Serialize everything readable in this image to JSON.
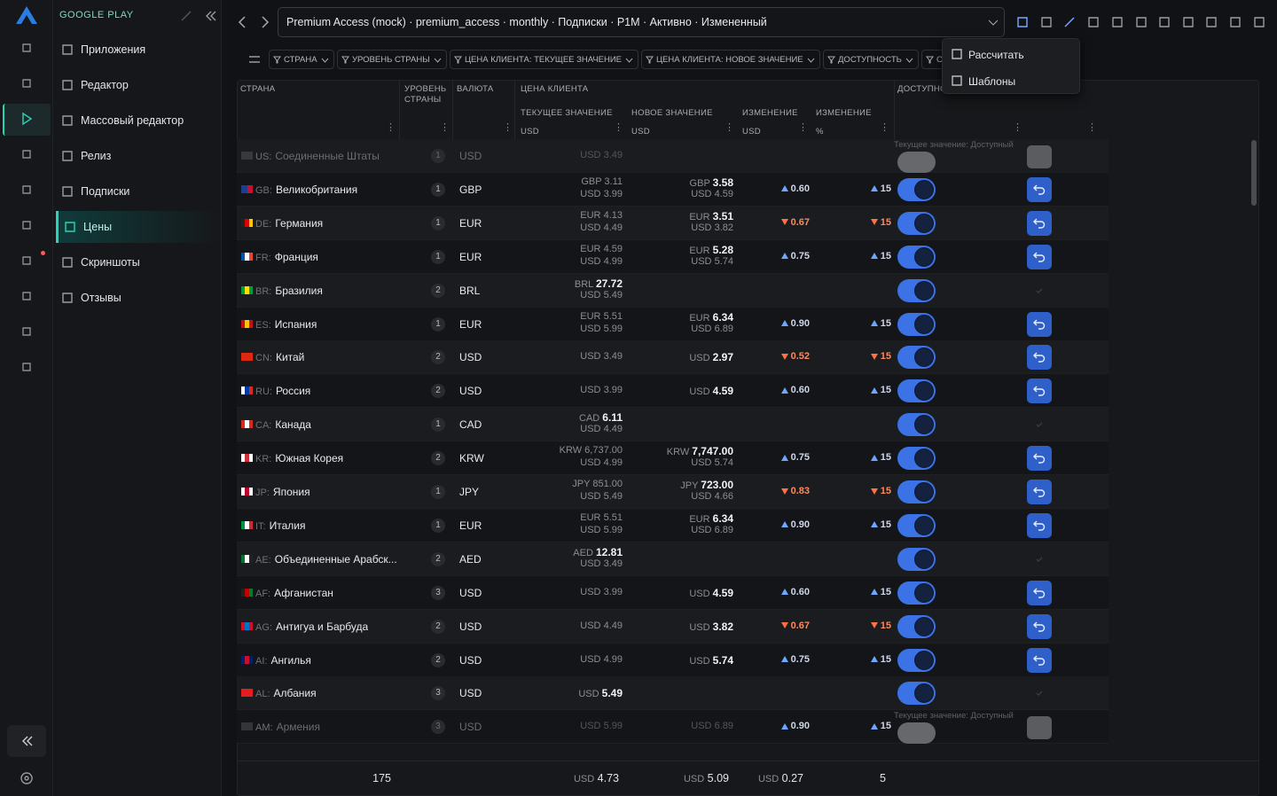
{
  "sidebar": {
    "title": "GOOGLE PLAY",
    "active": 5,
    "items": [
      "Приложения",
      "Редактор",
      "Массовый редактор",
      "Релиз",
      "Подписки",
      "Цены",
      "Скриншоты",
      "Отзывы"
    ]
  },
  "topbar": {
    "breadcrumb": "Premium Access (mock) · premium_access · monthly · Подписки · P1M · Активно · Измененный"
  },
  "filters": [
    "СТРАНА",
    "УРОВЕНЬ СТРАНЫ",
    "ЦЕНА КЛИЕНТА: ТЕКУЩЕЕ ЗНАЧЕНИЕ",
    "ЦЕНА КЛИЕНТА: НОВОЕ ЗНАЧЕНИЕ",
    "ДОСТУПНОСТЬ",
    "СТАТУС"
  ],
  "menu": [
    "Рассчитать",
    "Шаблоны"
  ],
  "table": {
    "headers": {
      "country": "СТРАНА",
      "tier": "УРОВЕНЬ СТРАНЫ",
      "currency": "ВАЛЮТА",
      "price": "ЦЕНА КЛИЕНТА",
      "current": "ТЕКУЩЕЕ ЗНАЧЕНИЕ",
      "new": "НОВОЕ ЗНАЧЕНИЕ",
      "change": "ИЗМЕНЕНИЕ",
      "change_pct": "ИЗМЕНЕНИЕ",
      "availability": "ДОСТУПНОСТЬ",
      "unit_current": "USD",
      "unit_new": "USD",
      "unit_change": "USD",
      "unit_pct": "%"
    },
    "rows": [
      {
        "code": "US:",
        "name": "Соединенные Штаты",
        "flag": [
          "#666",
          "#666"
        ],
        "tier": "1",
        "currency": "USD",
        "current": [
          {
            "cur": "USD",
            "amt": "3.49"
          }
        ],
        "disabled": true,
        "hint": "Текущее значение: Доступный"
      },
      {
        "code": "GB:",
        "name": "Великобритания",
        "flag": [
          "#1f3d8f",
          "#c8102e"
        ],
        "tier": "1",
        "currency": "GBP",
        "current": [
          {
            "cur": "GBP",
            "amt": "3.11"
          },
          {
            "cur": "USD",
            "amt": "3.99"
          }
        ],
        "new": [
          {
            "cur": "GBP",
            "amt": "3.58"
          },
          {
            "cur": "USD",
            "amt": "4.59"
          }
        ],
        "change": {
          "dir": "up",
          "value": "0.60"
        },
        "pct": {
          "dir": "up",
          "value": "15"
        }
      },
      {
        "code": "DE:",
        "name": "Германия",
        "flag": [
          "#222",
          "#dd0000",
          "#ffce00"
        ],
        "tier": "1",
        "currency": "EUR",
        "current": [
          {
            "cur": "EUR",
            "amt": "4.13"
          },
          {
            "cur": "USD",
            "amt": "4.49"
          }
        ],
        "new": [
          {
            "cur": "EUR",
            "amt": "3.51"
          },
          {
            "cur": "USD",
            "amt": "3.82"
          }
        ],
        "change": {
          "dir": "down",
          "value": "0.67"
        },
        "pct": {
          "dir": "down",
          "value": "15"
        }
      },
      {
        "code": "FR:",
        "name": "Франция",
        "flag": [
          "#0055a4",
          "#ffffff",
          "#ef4135"
        ],
        "tier": "1",
        "currency": "EUR",
        "current": [
          {
            "cur": "EUR",
            "amt": "4.59"
          },
          {
            "cur": "USD",
            "amt": "4.99"
          }
        ],
        "new": [
          {
            "cur": "EUR",
            "amt": "5.28"
          },
          {
            "cur": "USD",
            "amt": "5.74"
          }
        ],
        "change": {
          "dir": "up",
          "value": "0.75"
        },
        "pct": {
          "dir": "up",
          "value": "15"
        }
      },
      {
        "code": "BR:",
        "name": "Бразилия",
        "flag": [
          "#009c3b",
          "#ffdf00",
          "#009c3b"
        ],
        "tier": "2",
        "currency": "BRL",
        "current": [
          {
            "cur": "BRL",
            "amt": "27.72"
          },
          {
            "cur": "USD",
            "amt": "5.49"
          }
        ]
      },
      {
        "code": "ES:",
        "name": "Испания",
        "flag": [
          "#c60b1e",
          "#ffc400",
          "#c60b1e"
        ],
        "tier": "1",
        "currency": "EUR",
        "current": [
          {
            "cur": "EUR",
            "amt": "5.51"
          },
          {
            "cur": "USD",
            "amt": "5.99"
          }
        ],
        "new": [
          {
            "cur": "EUR",
            "amt": "6.34"
          },
          {
            "cur": "USD",
            "amt": "6.89"
          }
        ],
        "change": {
          "dir": "up",
          "value": "0.90"
        },
        "pct": {
          "dir": "up",
          "value": "15"
        }
      },
      {
        "code": "CN:",
        "name": "Китай",
        "flag": [
          "#de2910",
          "#de2910"
        ],
        "tier": "2",
        "currency": "USD",
        "current": [
          {
            "cur": "USD",
            "amt": "3.49"
          }
        ],
        "new": [
          {
            "cur": "USD",
            "amt": "2.97"
          }
        ],
        "change": {
          "dir": "down",
          "value": "0.52"
        },
        "pct": {
          "dir": "down",
          "value": "15"
        }
      },
      {
        "code": "RU:",
        "name": "Россия",
        "flag": [
          "#ffffff",
          "#0039a6",
          "#d52b1e"
        ],
        "tier": "2",
        "currency": "USD",
        "current": [
          {
            "cur": "USD",
            "amt": "3.99"
          }
        ],
        "new": [
          {
            "cur": "USD",
            "amt": "4.59"
          }
        ],
        "change": {
          "dir": "up",
          "value": "0.60"
        },
        "pct": {
          "dir": "up",
          "value": "15"
        }
      },
      {
        "code": "CA:",
        "name": "Канада",
        "flag": [
          "#d52b1e",
          "#ffffff",
          "#d52b1e"
        ],
        "tier": "1",
        "currency": "CAD",
        "current": [
          {
            "cur": "CAD",
            "amt": "6.11"
          },
          {
            "cur": "USD",
            "amt": "4.49"
          }
        ]
      },
      {
        "code": "KR:",
        "name": "Южная Корея",
        "flag": [
          "#ffffff",
          "#cd2e3a",
          "#ffffff"
        ],
        "tier": "2",
        "currency": "KRW",
        "current": [
          {
            "cur": "KRW",
            "amt": "6,737.00"
          },
          {
            "cur": "USD",
            "amt": "4.99"
          }
        ],
        "new": [
          {
            "cur": "KRW",
            "amt": "7,747.00"
          },
          {
            "cur": "USD",
            "amt": "5.74"
          }
        ],
        "change": {
          "dir": "up",
          "value": "0.75"
        },
        "pct": {
          "dir": "up",
          "value": "15"
        }
      },
      {
        "code": "JP:",
        "name": "Япония",
        "flag": [
          "#ffffff",
          "#bc002d",
          "#ffffff"
        ],
        "tier": "1",
        "currency": "JPY",
        "current": [
          {
            "cur": "JPY",
            "amt": "851.00"
          },
          {
            "cur": "USD",
            "amt": "5.49"
          }
        ],
        "new": [
          {
            "cur": "JPY",
            "amt": "723.00"
          },
          {
            "cur": "USD",
            "amt": "4.66"
          }
        ],
        "change": {
          "dir": "down",
          "value": "0.83"
        },
        "pct": {
          "dir": "down",
          "value": "15"
        }
      },
      {
        "code": "IT:",
        "name": "Италия",
        "flag": [
          "#009246",
          "#ffffff",
          "#ce2b37"
        ],
        "tier": "1",
        "currency": "EUR",
        "current": [
          {
            "cur": "EUR",
            "amt": "5.51"
          },
          {
            "cur": "USD",
            "amt": "5.99"
          }
        ],
        "new": [
          {
            "cur": "EUR",
            "amt": "6.34"
          },
          {
            "cur": "USD",
            "amt": "6.89"
          }
        ],
        "change": {
          "dir": "up",
          "value": "0.90"
        },
        "pct": {
          "dir": "up",
          "value": "15"
        }
      },
      {
        "code": "AE:",
        "name": "Объединенные Арабск...",
        "flag": [
          "#00732f",
          "#ffffff",
          "#222"
        ],
        "tier": "2",
        "currency": "AED",
        "current": [
          {
            "cur": "AED",
            "amt": "12.81"
          },
          {
            "cur": "USD",
            "amt": "3.49"
          }
        ]
      },
      {
        "code": "AF:",
        "name": "Афганистан",
        "flag": [
          "#222",
          "#be0000",
          "#007a36"
        ],
        "tier": "3",
        "currency": "USD",
        "current": [
          {
            "cur": "USD",
            "amt": "3.99"
          }
        ],
        "new": [
          {
            "cur": "USD",
            "amt": "4.59"
          }
        ],
        "change": {
          "dir": "up",
          "value": "0.60"
        },
        "pct": {
          "dir": "up",
          "value": "15"
        }
      },
      {
        "code": "AG:",
        "name": "Антигуа и Барбуда",
        "flag": [
          "#ce1126",
          "#0072c6",
          "#ce1126"
        ],
        "tier": "2",
        "currency": "USD",
        "current": [
          {
            "cur": "USD",
            "amt": "4.49"
          }
        ],
        "new": [
          {
            "cur": "USD",
            "amt": "3.82"
          }
        ],
        "change": {
          "dir": "down",
          "value": "0.67"
        },
        "pct": {
          "dir": "down",
          "value": "15"
        }
      },
      {
        "code": "AI:",
        "name": "Ангилья",
        "flag": [
          "#012169",
          "#c8102e",
          "#012169"
        ],
        "tier": "2",
        "currency": "USD",
        "current": [
          {
            "cur": "USD",
            "amt": "4.99"
          }
        ],
        "new": [
          {
            "cur": "USD",
            "amt": "5.74"
          }
        ],
        "change": {
          "dir": "up",
          "value": "0.75"
        },
        "pct": {
          "dir": "up",
          "value": "15"
        }
      },
      {
        "code": "AL:",
        "name": "Албания",
        "flag": [
          "#e41e20",
          "#e41e20"
        ],
        "tier": "3",
        "currency": "USD",
        "current": [
          {
            "cur": "USD",
            "amt": "5.49"
          }
        ]
      },
      {
        "code": "AM:",
        "name": "Армения",
        "flag": [
          "#666",
          "#666"
        ],
        "tier": "3",
        "currency": "USD",
        "current": [
          {
            "cur": "USD",
            "amt": "5.99"
          }
        ],
        "new": [
          {
            "cur": "USD",
            "amt": "6.89"
          }
        ],
        "change": {
          "dir": "up",
          "value": "0.90"
        },
        "pct": {
          "dir": "up",
          "value": "15"
        },
        "disabled": true,
        "hint": "Текущее значение: Доступный"
      }
    ],
    "footer": {
      "count": "175",
      "current": {
        "cur": "USD",
        "amt": "4.73"
      },
      "new": {
        "cur": "USD",
        "amt": "5.09"
      },
      "change": {
        "cur": "USD",
        "amt": "0.27"
      },
      "pct": "5"
    }
  }
}
